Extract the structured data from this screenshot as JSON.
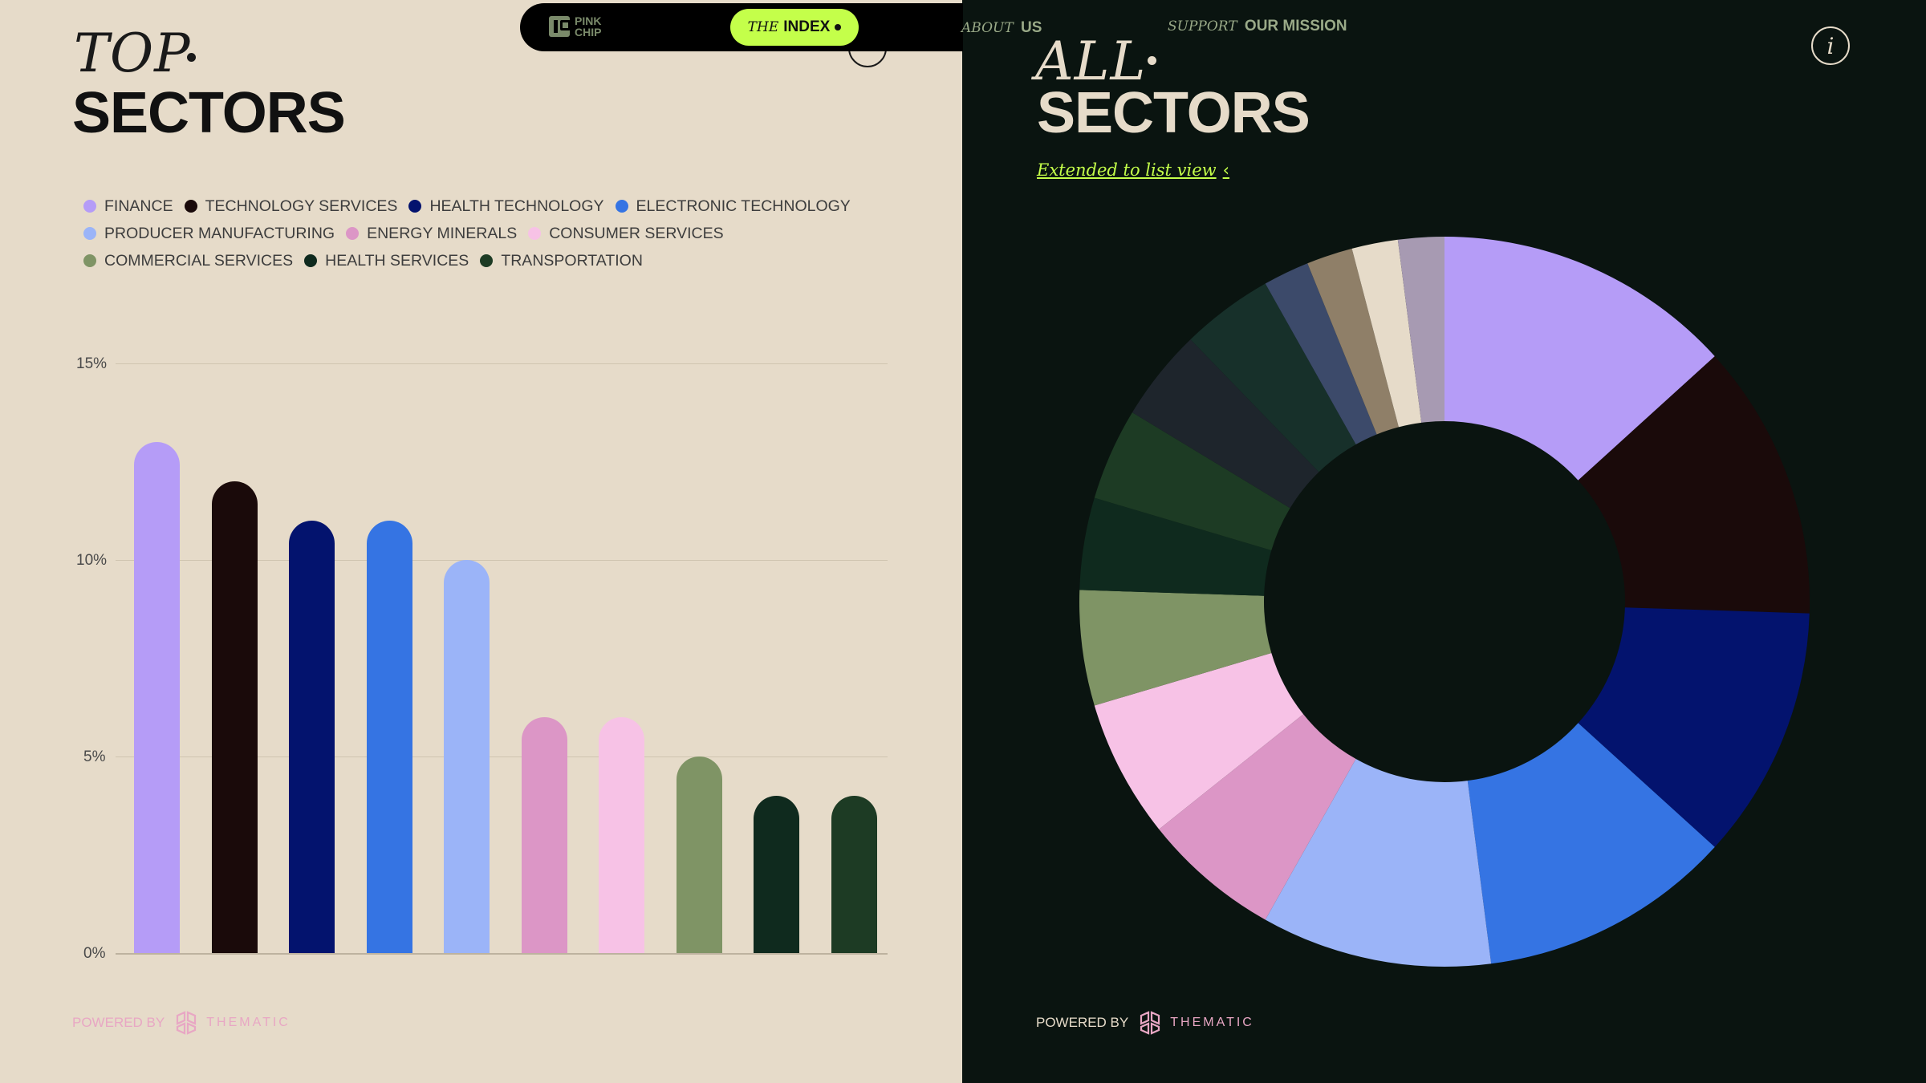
{
  "nav": {
    "logo_text_1": "PINK",
    "logo_text_2": "CHIP",
    "index_italic": "THE",
    "index_bold": "INDEX",
    "about_italic": "ABOUT",
    "about_bold": "US",
    "support_italic": "SUPPORT",
    "support_bold": "OUR MISSION"
  },
  "left": {
    "title_italic": "TOP",
    "title_bold": "SECTORS",
    "powered_by": "POWERED BY",
    "brand": "THEMATIC",
    "y_labels": [
      "15%",
      "10%",
      "5%",
      "0%"
    ]
  },
  "right": {
    "title_italic": "ALL",
    "title_bold": "SECTORS",
    "extended_link": "Extended to list view",
    "info_label": "i",
    "powered_by": "POWERED BY",
    "brand": "THEMATIC"
  },
  "colors": {
    "left_bg": "#e6dbc9",
    "right_bg": "#0a1410",
    "accent": "#c4ff4a",
    "brand_pink": "#e8a7c4"
  },
  "icons": {
    "logo": "pink-chip-logo-icon",
    "info": "info-icon",
    "chevron": "chevron-left-icon",
    "thematic": "thematic-logo-icon"
  },
  "chart_data": [
    {
      "type": "bar",
      "title": "TOP SECTORS",
      "categories": [
        "FINANCE",
        "TECHNOLOGY SERVICES",
        "HEALTH TECHNOLOGY",
        "ELECTRONIC TECHNOLOGY",
        "PRODUCER MANUFACTURING",
        "ENERGY MINERALS",
        "CONSUMER SERVICES",
        "COMMERCIAL SERVICES",
        "HEALTH SERVICES",
        "TRANSPORTATION"
      ],
      "values": [
        13,
        12,
        11,
        11,
        10,
        6,
        6,
        5,
        4,
        4
      ],
      "colors": [
        "#b59cf7",
        "#1a0a0a",
        "#03136e",
        "#3574e3",
        "#9bb4f8",
        "#dc96c6",
        "#f7c2e6",
        "#7f9465",
        "#0f2a1e",
        "#1d3b24"
      ],
      "ylim": [
        0,
        15
      ],
      "yticks": [
        "0%",
        "5%",
        "10%",
        "15%"
      ],
      "grid": true,
      "legend": "top"
    },
    {
      "type": "pie",
      "title": "ALL SECTORS",
      "donut": true,
      "values": [
        13,
        12,
        11,
        11,
        10,
        6,
        6,
        5,
        4,
        4,
        4,
        4,
        2,
        2,
        2,
        2
      ],
      "colors": [
        "#b59cf7",
        "#1a0a0a",
        "#03136e",
        "#3574e3",
        "#9bb4f8",
        "#dc96c6",
        "#f7c2e6",
        "#7f9465",
        "#0f2a1e",
        "#1d3b24",
        "#1e252c",
        "#17302a",
        "#3c4a6a",
        "#8f7f68",
        "#e6dbc9",
        "#a79ab2"
      ]
    }
  ]
}
